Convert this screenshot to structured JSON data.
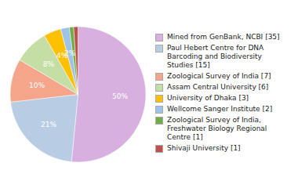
{
  "chart_data": {
    "type": "pie",
    "categories": [
      "Mined from GenBank, NCBI [35]",
      "Paul Hebert Centre for DNA\nBarcoding and Biodiversity\nStudies [15]",
      "Zoological Survey of India [7]",
      "Assam Central University [6]",
      "University of Dhaka [3]",
      "Wellcome Sanger Institute [2]",
      "Zoological Survey of India,\nFreshwater Biology Regional\nCentre [1]",
      "Shivaji University [1]"
    ],
    "values": [
      50,
      21,
      10,
      8,
      4,
      2,
      1,
      1
    ],
    "value_labels": [
      "50%",
      "21%",
      "10%",
      "8%",
      "4%",
      "2%",
      null,
      null
    ],
    "colors": [
      "#d8b0e0",
      "#b8cce4",
      "#f4a58a",
      "#c5dea5",
      "#ffc000",
      "#9dc3e6",
      "#70ad47",
      "#c0504d"
    ],
    "data_labels": true,
    "legend": "right"
  }
}
